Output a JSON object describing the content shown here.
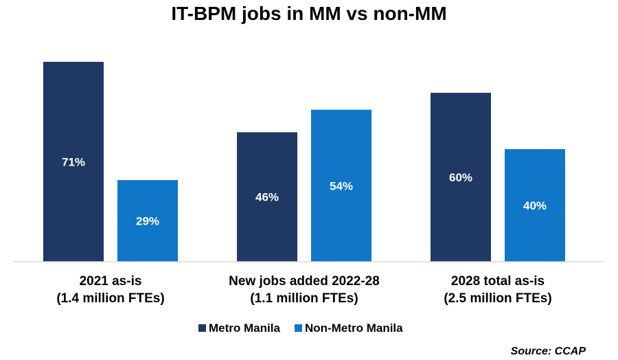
{
  "chart_data": {
    "type": "bar",
    "title": "IT-BPM jobs in MM vs non-MM",
    "categories": [
      [
        "2021 as-is",
        "(1.4 million FTEs)"
      ],
      [
        "New jobs added 2022-28",
        "(1.1 million FTEs)"
      ],
      [
        "2028 total as-is",
        "(2.5 million FTEs)"
      ]
    ],
    "series": [
      {
        "name": "Metro Manila",
        "color": "#1f3864",
        "values": [
          71,
          46,
          60
        ],
        "labels": [
          "71%",
          "46%",
          "60%"
        ]
      },
      {
        "name": "Non-Metro Manila",
        "color": "#0f76c8",
        "values": [
          29,
          54,
          40
        ],
        "labels": [
          "29%",
          "54%",
          "40%"
        ]
      }
    ],
    "ylim": [
      0,
      71
    ],
    "grid": false,
    "legend_position": "bottom",
    "source": "Source: CCAP"
  }
}
